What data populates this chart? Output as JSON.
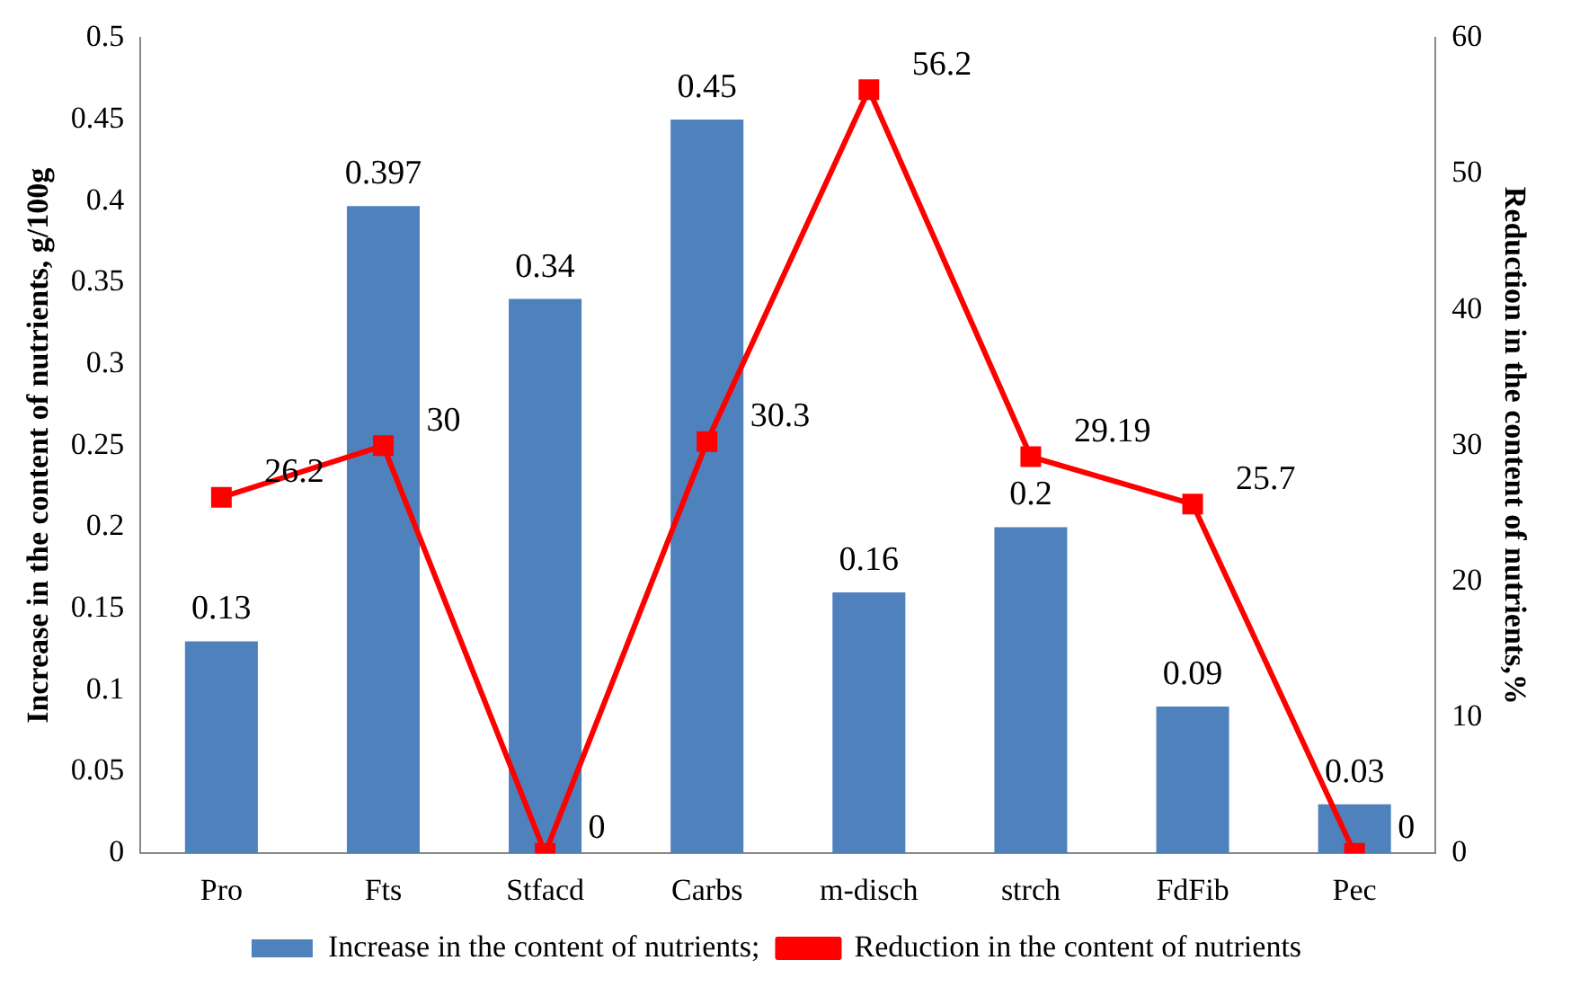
{
  "chart_data": {
    "type": "bar",
    "categories": [
      "Pro",
      "Fts",
      "Stfacd",
      "Carbs",
      "m-disch",
      "strch",
      "FdFib",
      "Pec"
    ],
    "ylabel": "Increase in the content of nutrients, g/100g",
    "y2label": "Reduction in the content of nutrients,%",
    "series": [
      {
        "name": "Increase in the content of nutrients;",
        "color": "#4f81bd",
        "values": [
          0.13,
          0.397,
          0.34,
          0.45,
          0.16,
          0.2,
          0.09,
          0.03
        ]
      },
      {
        "name": "Reduction in the content of nutrients",
        "type": "line",
        "axis": "y2",
        "color": "#ff0000",
        "marker": "square",
        "values": [
          26.2,
          30,
          0,
          30.3,
          56.2,
          29.19,
          25.7,
          0
        ]
      }
    ],
    "ylim": [
      0,
      0.5
    ],
    "yticks": [
      0,
      0.05,
      0.1,
      0.15,
      0.2,
      0.25,
      0.3,
      0.35,
      0.4,
      0.45,
      0.5
    ],
    "y2lim": [
      0,
      60
    ],
    "y2ticks": [
      0,
      10,
      20,
      30,
      40,
      50,
      60
    ],
    "grid": false,
    "legend": "bottom",
    "data_labels": true
  }
}
